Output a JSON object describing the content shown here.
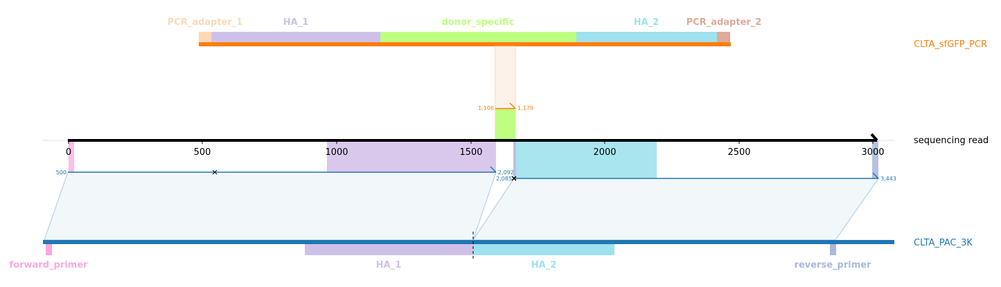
{
  "tracks": {
    "reference": {
      "name": "CLTA_sfGFP_PCR",
      "color": "#ff7f0e"
    },
    "read": {
      "name": "sequencing read",
      "color": "#000000"
    },
    "target": {
      "name": "CLTA_PAC_3K",
      "color": "#1f77b4"
    }
  },
  "reference_features": [
    {
      "label": "PCR_adapter_1",
      "color": "#fdd9b5"
    },
    {
      "label": "HA_1",
      "color": "#cfc0ea"
    },
    {
      "label": "donor_specific",
      "color": "#bfff80"
    },
    {
      "label": "HA_2",
      "color": "#9fe1ee"
    },
    {
      "label": "PCR_adapter_2",
      "color": "#e0a99a"
    }
  ],
  "target_features": [
    {
      "label": "forward_primer",
      "color": "#ffa6e0"
    },
    {
      "label": "HA_1",
      "color": "#cfc0ea"
    },
    {
      "label": "HA_2",
      "color": "#9fe1ee"
    },
    {
      "label": "reverse_primer",
      "color": "#a9b8dc"
    }
  ],
  "read_axis": {
    "ticks": [
      "0",
      "500",
      "1000",
      "1500",
      "2000",
      "2500",
      "3000"
    ]
  },
  "alignment_coords": {
    "ref_start": "1,106",
    "ref_end": "1,179",
    "target1_start": "500",
    "target1_end": "2,092",
    "target2_start": "2,085",
    "target2_end": "3,443"
  }
}
